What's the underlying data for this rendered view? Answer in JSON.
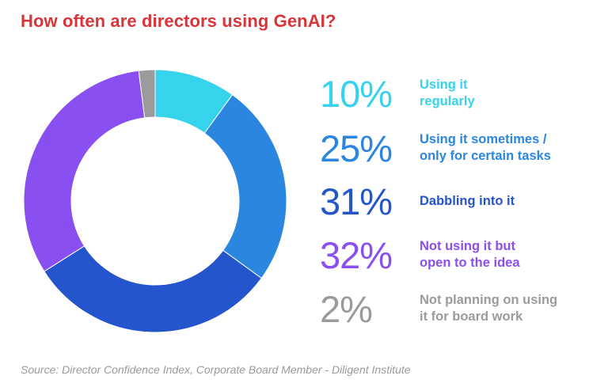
{
  "chart_data": {
    "type": "pie",
    "title": "How often are directors using GenAI?",
    "categories": [
      "Using it regularly",
      "Using it sometimes / only for certain tasks",
      "Dabbling into it",
      "Not using it but open to the idea",
      "Not planning on using it for board work"
    ],
    "values": [
      10,
      25,
      31,
      32,
      2
    ],
    "value_labels": [
      "10%",
      "25%",
      "31%",
      "32%",
      "2%"
    ],
    "colors": [
      "#35d3ec",
      "#2b86e0",
      "#2555cc",
      "#8a4ff0",
      "#9b9b9b"
    ],
    "legend_lines": [
      [
        "Using it",
        "regularly"
      ],
      [
        "Using it sometimes /",
        "only for certain tasks"
      ],
      [
        "Dabbling into it"
      ],
      [
        "Not using it but",
        "open to the idea"
      ],
      [
        "Not planning on using",
        "it for board work"
      ]
    ],
    "legend_placement": "right",
    "source": "Source: Director Confidence Index, Corporate Board Member - Diligent Institute"
  }
}
